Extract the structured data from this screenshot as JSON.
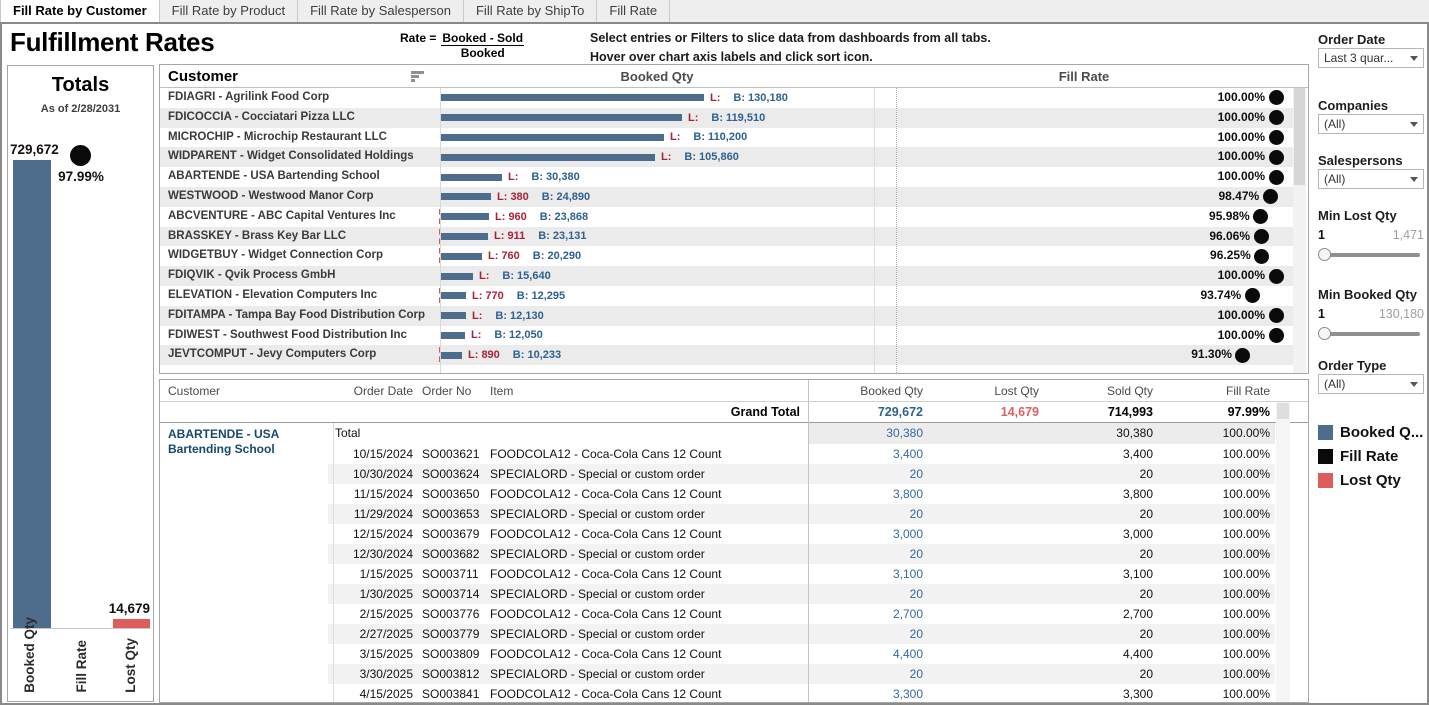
{
  "tabs": [
    "Fill Rate by Customer",
    "Fill Rate by Product",
    "Fill Rate by Salesperson",
    "Fill Rate by ShipTo",
    "Fill Rate"
  ],
  "active_tab": "Fill Rate by Customer",
  "header": {
    "title": "Fulfillment Rates",
    "formula_prefix": "Rate =",
    "formula_numerator": "Booked - Sold",
    "formula_denominator": "Booked",
    "instruction_line1": "Select entries or Filters to slice data from dashboards from all tabs.",
    "instruction_line2": "Hover over chart axis labels and click sort icon."
  },
  "colors": {
    "bar_blue": "#4e6d8c",
    "text_blue": "#2e618f",
    "detail_blue": "#35699e",
    "lost_crimson": "#a92239",
    "lost_red": "#dd5c5c",
    "grand_total_red": "#e06060",
    "dot_black": "#0a0a0a"
  },
  "chart_data": [
    {
      "type": "bar",
      "title": "Fill Rate by Customer",
      "columns": [
        "Customer",
        "Booked Qty",
        "Fill Rate"
      ],
      "max_booked": 130180,
      "fill_axis_range": [
        0,
        100
      ],
      "rows": [
        {
          "customer": "FDIAGRI - Agrilink Food Corp",
          "booked": 130180,
          "booked_label": "B: 130,180",
          "lost": 0,
          "lost_label": "L:",
          "fill_rate": 100.0,
          "fill_label": "100.00%"
        },
        {
          "customer": "FDICOCCIA - Cocciatari Pizza LLC",
          "booked": 119510,
          "booked_label": "B: 119,510",
          "lost": 0,
          "lost_label": "L:",
          "fill_rate": 100.0,
          "fill_label": "100.00%"
        },
        {
          "customer": "MICROCHIP - Microchip Restaurant LLC",
          "booked": 110200,
          "booked_label": "B: 110,200",
          "lost": 0,
          "lost_label": "L:",
          "fill_rate": 100.0,
          "fill_label": "100.00%"
        },
        {
          "customer": "WIDPARENT - Widget Consolidated Holdings",
          "booked": 105860,
          "booked_label": "B: 105,860",
          "lost": 0,
          "lost_label": "L:",
          "fill_rate": 100.0,
          "fill_label": "100.00%"
        },
        {
          "customer": "ABARTENDE - USA Bartending School",
          "booked": 30380,
          "booked_label": "B: 30,380",
          "lost": 0,
          "lost_label": "L:",
          "fill_rate": 100.0,
          "fill_label": "100.00%"
        },
        {
          "customer": "WESTWOOD - Westwood Manor Corp",
          "booked": 24890,
          "booked_label": "B: 24,890",
          "lost": 380,
          "lost_label": "L: 380",
          "fill_rate": 98.47,
          "fill_label": "98.47%"
        },
        {
          "customer": "ABCVENTURE - ABC Capital Ventures Inc",
          "booked": 23868,
          "booked_label": "B: 23,868",
          "lost": 960,
          "lost_label": "L: 960",
          "fill_rate": 95.98,
          "fill_label": "95.98%"
        },
        {
          "customer": "BRASSKEY - Brass Key Bar LLC",
          "booked": 23131,
          "booked_label": "B: 23,131",
          "lost": 911,
          "lost_label": "L: 911",
          "fill_rate": 96.06,
          "fill_label": "96.06%"
        },
        {
          "customer": "WIDGETBUY - Widget Connection Corp",
          "booked": 20290,
          "booked_label": "B: 20,290",
          "lost": 760,
          "lost_label": "L: 760",
          "fill_rate": 96.25,
          "fill_label": "96.25%"
        },
        {
          "customer": "FDIQVIK - Qvik Process GmbH",
          "booked": 15640,
          "booked_label": "B: 15,640",
          "lost": 0,
          "lost_label": "L:",
          "fill_rate": 100.0,
          "fill_label": "100.00%"
        },
        {
          "customer": "ELEVATION - Elevation Computers Inc",
          "booked": 12295,
          "booked_label": "B: 12,295",
          "lost": 770,
          "lost_label": "L: 770",
          "fill_rate": 93.74,
          "fill_label": "93.74%"
        },
        {
          "customer": "FDITAMPA - Tampa Bay Food Distribution Corp",
          "booked": 12130,
          "booked_label": "B: 12,130",
          "lost": 0,
          "lost_label": "L:",
          "fill_rate": 100.0,
          "fill_label": "100.00%"
        },
        {
          "customer": "FDIWEST - Southwest Food Distribution Inc",
          "booked": 12050,
          "booked_label": "B: 12,050",
          "lost": 0,
          "lost_label": "L:",
          "fill_rate": 100.0,
          "fill_label": "100.00%"
        },
        {
          "customer": "JEVTCOMPUT - Jevy Computers Corp",
          "booked": 10233,
          "booked_label": "B: 10,233",
          "lost": 890,
          "lost_label": "L: 890",
          "fill_rate": 91.3,
          "fill_label": "91.30%"
        }
      ]
    },
    {
      "type": "bar",
      "title": "Totals",
      "as_of": "As of 2/28/2031",
      "categories": [
        "Booked Qty",
        "Fill Rate",
        "Lost Qty"
      ],
      "values": [
        729672,
        0.9799,
        14679
      ],
      "value_labels": [
        "729,672",
        "97.99%",
        "14,679"
      ]
    }
  ],
  "detail_table": {
    "headers": [
      "Customer",
      "Order Date",
      "Order No",
      "Item",
      "Booked Qty",
      "Lost Qty",
      "Sold Qty",
      "Fill Rate"
    ],
    "grand_total": {
      "label": "Grand Total",
      "booked": "729,672",
      "lost": "14,679",
      "sold": "714,993",
      "fill": "97.99%"
    },
    "group": {
      "customer_line1": "ABARTENDE - USA",
      "customer_line2": "Bartending School",
      "total_label": "Total",
      "total_booked": "30,380",
      "total_sold": "30,380",
      "total_fill": "100.00%"
    },
    "rows": [
      [
        "10/15/2024",
        "SO003621",
        "FOODCOLA12 - Coca-Cola Cans 12 Count",
        "3,400",
        "",
        "3,400",
        "100.00%"
      ],
      [
        "10/30/2024",
        "SO003624",
        "SPECIALORD - Special or custom order",
        "20",
        "",
        "20",
        "100.00%"
      ],
      [
        "11/15/2024",
        "SO003650",
        "FOODCOLA12 - Coca-Cola Cans 12 Count",
        "3,800",
        "",
        "3,800",
        "100.00%"
      ],
      [
        "11/29/2024",
        "SO003653",
        "SPECIALORD - Special or custom order",
        "20",
        "",
        "20",
        "100.00%"
      ],
      [
        "12/15/2024",
        "SO003679",
        "FOODCOLA12 - Coca-Cola Cans 12 Count",
        "3,000",
        "",
        "3,000",
        "100.00%"
      ],
      [
        "12/30/2024",
        "SO003682",
        "SPECIALORD - Special or custom order",
        "20",
        "",
        "20",
        "100.00%"
      ],
      [
        "1/15/2025",
        "SO003711",
        "FOODCOLA12 - Coca-Cola Cans 12 Count",
        "3,100",
        "",
        "3,100",
        "100.00%"
      ],
      [
        "1/30/2025",
        "SO003714",
        "SPECIALORD - Special or custom order",
        "20",
        "",
        "20",
        "100.00%"
      ],
      [
        "2/15/2025",
        "SO003776",
        "FOODCOLA12 - Coca-Cola Cans 12 Count",
        "2,700",
        "",
        "2,700",
        "100.00%"
      ],
      [
        "2/27/2025",
        "SO003779",
        "SPECIALORD - Special or custom order",
        "20",
        "",
        "20",
        "100.00%"
      ],
      [
        "3/15/2025",
        "SO003809",
        "FOODCOLA12 - Coca-Cola Cans 12 Count",
        "4,400",
        "",
        "4,400",
        "100.00%"
      ],
      [
        "3/30/2025",
        "SO003812",
        "SPECIALORD - Special or custom order",
        "20",
        "",
        "20",
        "100.00%"
      ],
      [
        "4/15/2025",
        "SO003841",
        "FOODCOLA12 - Coca-Cola Cans 12 Count",
        "3,300",
        "",
        "3,300",
        "100.00%"
      ]
    ]
  },
  "filters": {
    "order_date": {
      "label": "Order Date",
      "value": "Last 3 quar..."
    },
    "companies": {
      "label": "Companies",
      "value": "(All)"
    },
    "salespersons": {
      "label": "Salespersons",
      "value": "(All)"
    },
    "min_lost_qty": {
      "label": "Min Lost Qty",
      "min": "1",
      "max": "1,471"
    },
    "min_booked_qty": {
      "label": "Min Booked Qty",
      "min": "1",
      "max": "130,180"
    },
    "order_type": {
      "label": "Order Type",
      "value": "(All)"
    }
  },
  "legend": {
    "items": [
      {
        "label": "Booked Q...",
        "color": "#4e6d8c"
      },
      {
        "label": "Fill Rate",
        "color": "#0a0a0a"
      },
      {
        "label": "Lost Qty",
        "color": "#dd5c5c"
      }
    ]
  }
}
